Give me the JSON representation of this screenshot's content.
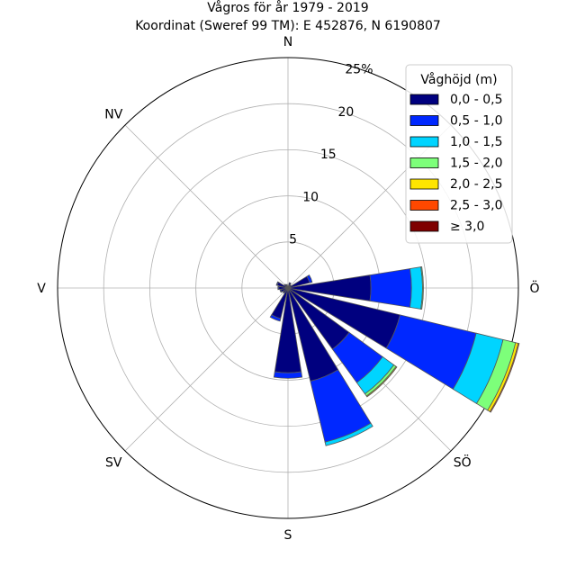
{
  "chart_data": {
    "type": "windrose",
    "title": "Vågros för år 1979 - 2019",
    "subtitle": "Koordinat (Sweref 99 TM): E 452876, N 6190807",
    "directions": [
      {
        "label": "N",
        "angle": 0
      },
      {
        "label": "Ö",
        "angle": 90
      },
      {
        "label": "SÖ",
        "angle": 135
      },
      {
        "label": "S",
        "angle": 180
      },
      {
        "label": "SV",
        "angle": 225
      },
      {
        "label": "V",
        "angle": 270
      },
      {
        "label": "NV",
        "angle": 315
      }
    ],
    "radial_ticks": [
      5,
      10,
      15,
      20
    ],
    "radial_max_label": "25%",
    "rmax": 25,
    "grid": true,
    "legend": {
      "title": "Våghöjd (m)",
      "placement": "top-right",
      "entries": [
        {
          "label": "0,0 - 0,5",
          "color": "#00007f"
        },
        {
          "label": "0,5 - 1,0",
          "color": "#0028ff"
        },
        {
          "label": "1,0 - 1,5",
          "color": "#00d4ff"
        },
        {
          "label": "1,5 - 2,0",
          "color": "#7dff7a"
        },
        {
          "label": "2,0 - 2,5",
          "color": "#ffe500"
        },
        {
          "label": "2,5 - 3,0",
          "color": "#ff4800"
        },
        {
          "label": "≥ 3,0",
          "color": "#7f0000"
        }
      ]
    },
    "sectors": [
      {
        "direction": 0,
        "values": [
          0.2,
          0,
          0,
          0,
          0,
          0,
          0
        ]
      },
      {
        "direction": 22.5,
        "values": [
          0.6,
          0,
          0,
          0,
          0,
          0,
          0
        ]
      },
      {
        "direction": 45,
        "values": [
          0.4,
          0,
          0,
          0,
          0,
          0,
          0
        ]
      },
      {
        "direction": 67.5,
        "values": [
          2.4,
          0.3,
          0,
          0,
          0,
          0,
          0
        ]
      },
      {
        "direction": 90,
        "values": [
          9.0,
          4.4,
          1.2,
          0.1,
          0,
          0,
          0
        ]
      },
      {
        "direction": 112.5,
        "values": [
          12.5,
          8.5,
          3.0,
          1.4,
          0.3,
          0.1,
          0
        ]
      },
      {
        "direction": 135,
        "values": [
          8.2,
          4.5,
          1.5,
          0.3,
          0.1,
          0,
          0
        ]
      },
      {
        "direction": 157.5,
        "values": [
          10.4,
          6.8,
          0.4,
          0,
          0,
          0,
          0
        ]
      },
      {
        "direction": 180,
        "values": [
          9.2,
          0.6,
          0,
          0,
          0,
          0,
          0
        ]
      },
      {
        "direction": 202.5,
        "values": [
          3.4,
          0.3,
          0,
          0,
          0,
          0,
          0
        ]
      },
      {
        "direction": 225,
        "values": [
          0.6,
          0.1,
          0,
          0,
          0,
          0,
          0
        ]
      },
      {
        "direction": 247.5,
        "values": [
          0.8,
          0.1,
          0,
          0,
          0,
          0,
          0
        ]
      },
      {
        "direction": 270,
        "values": [
          1.0,
          0.1,
          0,
          0,
          0,
          0,
          0
        ]
      },
      {
        "direction": 292.5,
        "values": [
          1.2,
          0.1,
          0,
          0,
          0,
          0,
          0
        ]
      },
      {
        "direction": 315,
        "values": [
          0.5,
          0,
          0,
          0,
          0,
          0,
          0
        ]
      },
      {
        "direction": 337.5,
        "values": [
          0.4,
          0,
          0,
          0,
          0,
          0,
          0
        ]
      }
    ]
  }
}
